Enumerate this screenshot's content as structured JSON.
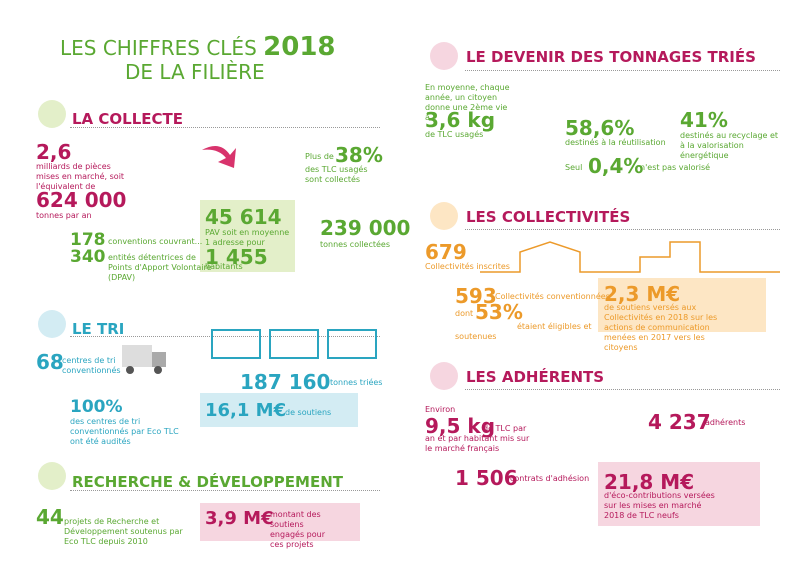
{
  "header": {
    "title_line1": "LES CHIFFRES CLÉS",
    "year": "2018",
    "title_line2": "DE LA FILIÈRE"
  },
  "collecte": {
    "heading": "LA COLLECTE",
    "pieces_value": "2,6",
    "pieces_text": "milliards de pièces mises en marché, soit l'équivalent de",
    "tonnes_value": "624 000",
    "tonnes_text": "tonnes par an",
    "collected_prefix": "Plus de",
    "collected_value": "38%",
    "collected_text": "des TLC usagés sont collectés",
    "pav_value": "45 614",
    "pav_text": "PAV soit en moyenne 1 adresse pour",
    "habitants_value": "1 455",
    "habitants_text": "habitants",
    "collected_tonnes_value": "239 000",
    "collected_tonnes_text": "tonnes collectées",
    "conventions_value": "178",
    "conventions_text": "conventions couvrant...",
    "entities_value": "340",
    "entities_text": "entités détentrices de Points d'Apport Volontaire (DPAV)"
  },
  "tri": {
    "heading": "LE TRI",
    "centres_value": "68",
    "centres_text": "centres de tri conventionnés",
    "triees_value": "187 160",
    "triees_text": "tonnes triées",
    "audit_value": "100%",
    "audit_text": "des centres de tri conventionnés par Eco TLC ont été audités",
    "soutiens_value": "16,1 M€",
    "soutiens_text": "de soutiens"
  },
  "rd": {
    "heading": "RECHERCHE & DÉVELOPPEMENT",
    "projets_value": "44",
    "projets_text": "projets de Recherche et Développement soutenus par Eco TLC depuis 2010",
    "montant_value": "3,9 M€",
    "montant_text": "montant des soutiens engagés pour ces projets"
  },
  "devenir": {
    "heading": "LE DEVENIR DES TONNAGES TRIÉS",
    "citoyen_text": "En moyenne, chaque année, un citoyen donne une 2ème vie à",
    "citoyen_value": "3,6 kg",
    "citoyen_unit": "de TLC usagés",
    "reuse_value": "58,6%",
    "reuse_text": "destinés à la réutilisation",
    "recycle_value": "41%",
    "recycle_text": "destinés au recyclage et à la valorisation énergétique",
    "waste_prefix": "Seul",
    "waste_value": "0,4%",
    "waste_text": "n'est pas valorisé"
  },
  "collectivites": {
    "heading": "LES COLLECTIVITÉS",
    "inscrites_value": "679",
    "inscrites_text": "Collectivités inscrites",
    "conventionnees_value": "593",
    "conventionnees_text": "Collectivités conventionnées",
    "dont": "dont",
    "eligibles_value": "53%",
    "eligibles_text": "étaient éligibles et soutenues",
    "soutiens_value": "2,3 M€",
    "soutiens_text": "de soutiens versés aux Collectivités en 2018 sur les actions de communication menées en 2017 vers les citoyens"
  },
  "adherents": {
    "heading": "LES ADHÉRENTS",
    "environ": "Environ",
    "kg_value": "9,5 kg",
    "kg_text": "de TLC par an et par habitant mis sur le marché français",
    "adherents_value": "4 237",
    "adherents_text": "adhérents",
    "contrats_value": "1 506",
    "contrats_text": "contrats d'adhésion",
    "eco_value": "21,8 M€",
    "eco_text": "d'éco-contributions versées sur les mises en marché 2018 de TLC neufs"
  }
}
